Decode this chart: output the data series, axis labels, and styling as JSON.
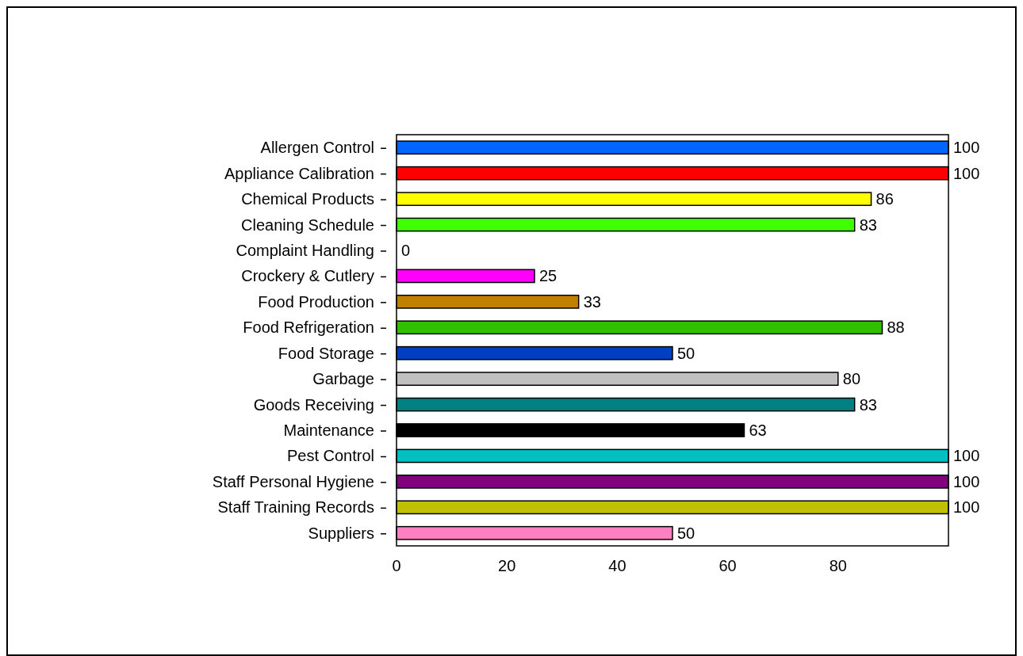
{
  "chart_data": {
    "type": "bar",
    "orientation": "horizontal",
    "categories": [
      "Allergen Control",
      "Appliance Calibration",
      "Chemical Products",
      "Cleaning Schedule",
      "Complaint Handling",
      "Crockery & Cutlery",
      "Food Production",
      "Food Refrigeration",
      "Food Storage",
      "Garbage",
      "Goods Receiving",
      "Maintenance",
      "Pest Control",
      "Staff Personal Hygiene",
      "Staff Training Records",
      "Suppliers"
    ],
    "values": [
      100,
      100,
      86,
      83,
      0,
      25,
      33,
      88,
      50,
      80,
      83,
      63,
      100,
      100,
      100,
      50
    ],
    "colors": [
      "#0066ff",
      "#ff0000",
      "#ffff00",
      "#40ff00",
      "#808080",
      "#ff00ff",
      "#c08000",
      "#30c000",
      "#0040c0",
      "#c0c0c0",
      "#008080",
      "#000000",
      "#00c0c0",
      "#800080",
      "#c0c000",
      "#ff80c0"
    ],
    "xlim": [
      0,
      100
    ],
    "xticks": [
      0,
      20,
      40,
      60,
      80
    ],
    "data_labels": true
  }
}
